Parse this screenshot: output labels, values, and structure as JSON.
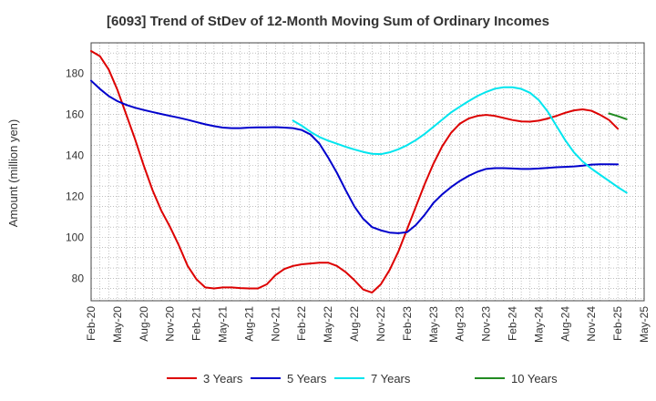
{
  "chart_data": {
    "type": "line",
    "title": "[6093]  Trend of StDev of 12-Month Moving Sum of Ordinary Incomes",
    "ylabel": "Amount (million yen)",
    "xlabel": "",
    "ylim": [
      69,
      195
    ],
    "yticks": [
      80,
      100,
      120,
      140,
      160,
      180
    ],
    "x_range": [
      "2020-02",
      "2025-05"
    ],
    "xtick_labels": [
      "Feb-20",
      "May-20",
      "Aug-20",
      "Nov-20",
      "Feb-21",
      "May-21",
      "Aug-21",
      "Nov-21",
      "Feb-22",
      "May-22",
      "Aug-22",
      "Nov-22",
      "Feb-23",
      "May-23",
      "Aug-23",
      "Nov-23",
      "Feb-24",
      "May-24",
      "Aug-24",
      "Nov-24",
      "Feb-25",
      "May-25"
    ],
    "grid": true,
    "legend_position": "bottom",
    "series": [
      {
        "name": "3 Years",
        "color": "#dd0000",
        "points": [
          [
            "2020-02",
            191
          ],
          [
            "2020-03",
            188.5
          ],
          [
            "2020-04",
            182
          ],
          [
            "2020-05",
            172
          ],
          [
            "2020-06",
            160
          ],
          [
            "2020-07",
            148
          ],
          [
            "2020-08",
            135
          ],
          [
            "2020-09",
            123
          ],
          [
            "2020-10",
            113
          ],
          [
            "2020-11",
            105
          ],
          [
            "2020-12",
            96
          ],
          [
            "2021-01",
            86
          ],
          [
            "2021-02",
            79.5
          ],
          [
            "2021-03",
            75.5
          ],
          [
            "2021-04",
            75
          ],
          [
            "2021-05",
            75.5
          ],
          [
            "2021-06",
            75.5
          ],
          [
            "2021-07",
            75.2
          ],
          [
            "2021-08",
            75
          ],
          [
            "2021-09",
            75
          ],
          [
            "2021-10",
            77
          ],
          [
            "2021-11",
            81.5
          ],
          [
            "2021-12",
            84.5
          ],
          [
            "2022-01",
            86
          ],
          [
            "2022-02",
            86.8
          ],
          [
            "2022-03",
            87.2
          ],
          [
            "2022-04",
            87.6
          ],
          [
            "2022-05",
            87.6
          ],
          [
            "2022-06",
            86
          ],
          [
            "2022-07",
            83
          ],
          [
            "2022-08",
            79
          ],
          [
            "2022-09",
            74.5
          ],
          [
            "2022-10",
            73
          ],
          [
            "2022-11",
            77
          ],
          [
            "2022-12",
            84
          ],
          [
            "2023-01",
            93
          ],
          [
            "2023-02",
            104
          ],
          [
            "2023-03",
            115
          ],
          [
            "2023-04",
            126
          ],
          [
            "2023-05",
            136
          ],
          [
            "2023-06",
            144.5
          ],
          [
            "2023-07",
            151
          ],
          [
            "2023-08",
            155.5
          ],
          [
            "2023-09",
            158
          ],
          [
            "2023-10",
            159.3
          ],
          [
            "2023-11",
            159.8
          ],
          [
            "2023-12",
            159.3
          ],
          [
            "2024-01",
            158.3
          ],
          [
            "2024-02",
            157.3
          ],
          [
            "2024-03",
            156.6
          ],
          [
            "2024-04",
            156.5
          ],
          [
            "2024-05",
            157
          ],
          [
            "2024-06",
            158
          ],
          [
            "2024-07",
            159.3
          ],
          [
            "2024-08",
            160.8
          ],
          [
            "2024-09",
            162
          ],
          [
            "2024-10",
            162.5
          ],
          [
            "2024-11",
            161.8
          ],
          [
            "2024-12",
            159.8
          ],
          [
            "2025-01",
            157.3
          ],
          [
            "2025-02",
            153
          ]
        ]
      },
      {
        "name": "5 Years",
        "color": "#0000cc",
        "points": [
          [
            "2020-02",
            176.5
          ],
          [
            "2020-03",
            172.5
          ],
          [
            "2020-04",
            169
          ],
          [
            "2020-05",
            166.5
          ],
          [
            "2020-06",
            164.7
          ],
          [
            "2020-07",
            163.3
          ],
          [
            "2020-08",
            162.2
          ],
          [
            "2020-09",
            161.2
          ],
          [
            "2020-10",
            160.2
          ],
          [
            "2020-11",
            159.3
          ],
          [
            "2020-12",
            158.4
          ],
          [
            "2021-01",
            157.4
          ],
          [
            "2021-02",
            156.3
          ],
          [
            "2021-03",
            155.2
          ],
          [
            "2021-04",
            154.3
          ],
          [
            "2021-05",
            153.6
          ],
          [
            "2021-06",
            153.3
          ],
          [
            "2021-07",
            153.3
          ],
          [
            "2021-08",
            153.6
          ],
          [
            "2021-09",
            153.7
          ],
          [
            "2021-10",
            153.7
          ],
          [
            "2021-11",
            153.8
          ],
          [
            "2021-12",
            153.6
          ],
          [
            "2022-01",
            153.3
          ],
          [
            "2022-02",
            152.4
          ],
          [
            "2022-03",
            150.2
          ],
          [
            "2022-04",
            145.8
          ],
          [
            "2022-05",
            139
          ],
          [
            "2022-06",
            131.5
          ],
          [
            "2022-07",
            123
          ],
          [
            "2022-08",
            115
          ],
          [
            "2022-09",
            109
          ],
          [
            "2022-10",
            105
          ],
          [
            "2022-11",
            103.4
          ],
          [
            "2022-12",
            102.3
          ],
          [
            "2023-01",
            102
          ],
          [
            "2023-02",
            102.5
          ],
          [
            "2023-03",
            106
          ],
          [
            "2023-04",
            111
          ],
          [
            "2023-05",
            116.8
          ],
          [
            "2023-06",
            121
          ],
          [
            "2023-07",
            124.5
          ],
          [
            "2023-08",
            127.5
          ],
          [
            "2023-09",
            130
          ],
          [
            "2023-10",
            132
          ],
          [
            "2023-11",
            133.4
          ],
          [
            "2023-12",
            133.8
          ],
          [
            "2024-01",
            133.8
          ],
          [
            "2024-02",
            133.6
          ],
          [
            "2024-03",
            133.4
          ],
          [
            "2024-04",
            133.4
          ],
          [
            "2024-05",
            133.6
          ],
          [
            "2024-06",
            133.9
          ],
          [
            "2024-07",
            134.2
          ],
          [
            "2024-08",
            134.4
          ],
          [
            "2024-09",
            134.6
          ],
          [
            "2024-10",
            135
          ],
          [
            "2024-11",
            135.5
          ],
          [
            "2024-12",
            135.7
          ],
          [
            "2025-01",
            135.7
          ],
          [
            "2025-02",
            135.6
          ]
        ]
      },
      {
        "name": "7 Years",
        "color": "#00e5ee",
        "points": [
          [
            "2022-01",
            157
          ],
          [
            "2022-02",
            154.5
          ],
          [
            "2022-03",
            151.5
          ],
          [
            "2022-04",
            149
          ],
          [
            "2022-05",
            147.2
          ],
          [
            "2022-06",
            145.7
          ],
          [
            "2022-07",
            144.2
          ],
          [
            "2022-08",
            142.9
          ],
          [
            "2022-09",
            141.7
          ],
          [
            "2022-10",
            140.8
          ],
          [
            "2022-11",
            140.6
          ],
          [
            "2022-12",
            141.5
          ],
          [
            "2023-01",
            143
          ],
          [
            "2023-02",
            145
          ],
          [
            "2023-03",
            147.5
          ],
          [
            "2023-04",
            150.5
          ],
          [
            "2023-05",
            154
          ],
          [
            "2023-06",
            157.5
          ],
          [
            "2023-07",
            161
          ],
          [
            "2023-08",
            163.8
          ],
          [
            "2023-09",
            166.5
          ],
          [
            "2023-10",
            169
          ],
          [
            "2023-11",
            171
          ],
          [
            "2023-12",
            172.6
          ],
          [
            "2024-01",
            173.3
          ],
          [
            "2024-02",
            173.3
          ],
          [
            "2024-03",
            172.5
          ],
          [
            "2024-04",
            170.6
          ],
          [
            "2024-05",
            167
          ],
          [
            "2024-06",
            161.5
          ],
          [
            "2024-07",
            154.5
          ],
          [
            "2024-08",
            147.5
          ],
          [
            "2024-09",
            141.5
          ],
          [
            "2024-10",
            137
          ],
          [
            "2024-11",
            133.5
          ],
          [
            "2024-12",
            130.5
          ],
          [
            "2025-01",
            127.5
          ],
          [
            "2025-02",
            124.5
          ],
          [
            "2025-03",
            121.8
          ]
        ]
      },
      {
        "name": "10 Years",
        "color": "#228b22",
        "points": [
          [
            "2025-01",
            160.5
          ],
          [
            "2025-02",
            159.2
          ],
          [
            "2025-03",
            157.7
          ]
        ]
      }
    ]
  }
}
